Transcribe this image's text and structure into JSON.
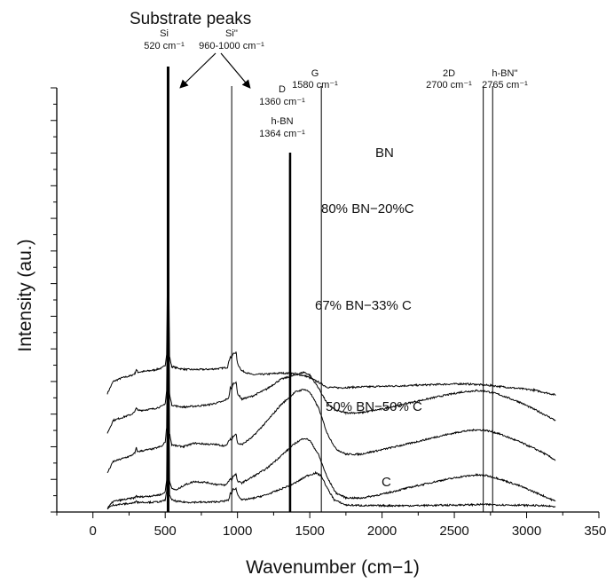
{
  "chart_data": {
    "type": "line",
    "title": "Substrate peaks",
    "xlabel": "Wavenumber (cm−1)",
    "ylabel": "Intensity (au.)",
    "xlim": [
      -250,
      3500
    ],
    "xticks": [
      0,
      500,
      1000,
      1500,
      2000,
      2500,
      3000,
      3500
    ],
    "ytick_count": 27,
    "offset_spectra": true,
    "legend": "none",
    "reference_lines": [
      {
        "id": "si",
        "x": 520,
        "label": "Si",
        "sublabel": "520 cm⁻¹",
        "bold": true
      },
      {
        "id": "si2",
        "x": 960,
        "label": "Si''",
        "sublabel": "960-1000 cm⁻¹",
        "bold": false
      },
      {
        "id": "d",
        "x": 1360,
        "label": "D",
        "sublabel": "1360 cm⁻¹",
        "bold": false
      },
      {
        "id": "hbn",
        "x": 1364,
        "label": "h-BN",
        "sublabel": "1364 cm⁻¹",
        "bold": true
      },
      {
        "id": "g",
        "x": 1580,
        "label": "G",
        "sublabel": "1580 cm⁻¹",
        "bold": false
      },
      {
        "id": "2d",
        "x": 2700,
        "label": "2D",
        "sublabel": "2700 cm⁻¹",
        "bold": false
      },
      {
        "id": "hbn2",
        "x": 2765,
        "label": "h-BN''",
        "sublabel": "2765 cm⁻¹",
        "bold": false
      }
    ],
    "series": [
      {
        "name": "BN",
        "offset": 4.05,
        "points": [
          [
            100,
            0.0
          ],
          [
            140,
            0.42
          ],
          [
            200,
            0.55
          ],
          [
            260,
            0.62
          ],
          [
            290,
            0.7
          ],
          [
            300,
            0.85
          ],
          [
            310,
            0.75
          ],
          [
            360,
            0.78
          ],
          [
            420,
            0.82
          ],
          [
            480,
            0.9
          ],
          [
            500,
            1.0
          ],
          [
            510,
            1.4
          ],
          [
            520,
            6.5
          ],
          [
            530,
            1.3
          ],
          [
            545,
            0.95
          ],
          [
            580,
            0.9
          ],
          [
            630,
            0.85
          ],
          [
            700,
            0.84
          ],
          [
            800,
            0.85
          ],
          [
            880,
            0.88
          ],
          [
            930,
            0.92
          ],
          [
            950,
            1.3
          ],
          [
            960,
            1.25
          ],
          [
            970,
            1.4
          ],
          [
            990,
            1.45
          ],
          [
            1000,
            1.05
          ],
          [
            1030,
            0.8
          ],
          [
            1100,
            0.66
          ],
          [
            1200,
            0.68
          ],
          [
            1300,
            0.72
          ],
          [
            1400,
            0.7
          ],
          [
            1480,
            0.6
          ],
          [
            1560,
            0.4
          ],
          [
            1620,
            0.22
          ],
          [
            1700,
            0.2
          ],
          [
            1800,
            0.22
          ],
          [
            2000,
            0.25
          ],
          [
            2200,
            0.28
          ],
          [
            2400,
            0.32
          ],
          [
            2550,
            0.34
          ],
          [
            2650,
            0.32
          ],
          [
            2750,
            0.28
          ],
          [
            2900,
            0.2
          ],
          [
            3050,
            0.12
          ],
          [
            3200,
            -0.05
          ]
        ]
      },
      {
        "name": "80% BN−20%C",
        "offset": 2.65,
        "points": [
          [
            100,
            0.0
          ],
          [
            140,
            0.45
          ],
          [
            200,
            0.55
          ],
          [
            260,
            0.65
          ],
          [
            290,
            0.75
          ],
          [
            300,
            0.92
          ],
          [
            310,
            0.8
          ],
          [
            360,
            0.82
          ],
          [
            420,
            0.86
          ],
          [
            480,
            0.95
          ],
          [
            500,
            1.05
          ],
          [
            510,
            1.5
          ],
          [
            520,
            7.8
          ],
          [
            530,
            1.4
          ],
          [
            545,
            1.0
          ],
          [
            580,
            0.95
          ],
          [
            630,
            0.92
          ],
          [
            700,
            0.95
          ],
          [
            800,
            1.0
          ],
          [
            900,
            1.12
          ],
          [
            940,
            1.25
          ],
          [
            950,
            1.6
          ],
          [
            960,
            1.55
          ],
          [
            970,
            1.75
          ],
          [
            990,
            1.8
          ],
          [
            1000,
            1.4
          ],
          [
            1030,
            1.2
          ],
          [
            1100,
            1.3
          ],
          [
            1200,
            1.55
          ],
          [
            1300,
            1.9
          ],
          [
            1400,
            2.05
          ],
          [
            1460,
            2.15
          ],
          [
            1500,
            2.05
          ],
          [
            1560,
            1.6
          ],
          [
            1620,
            1.05
          ],
          [
            1680,
            0.8
          ],
          [
            1750,
            0.72
          ],
          [
            1850,
            0.72
          ],
          [
            2000,
            0.85
          ],
          [
            2200,
            1.08
          ],
          [
            2400,
            1.3
          ],
          [
            2550,
            1.45
          ],
          [
            2650,
            1.5
          ],
          [
            2720,
            1.48
          ],
          [
            2800,
            1.38
          ],
          [
            2950,
            1.1
          ],
          [
            3100,
            0.72
          ],
          [
            3200,
            0.45
          ]
        ]
      },
      {
        "name": "67% BN−33% C",
        "offset": 1.25,
        "points": [
          [
            100,
            0.0
          ],
          [
            140,
            0.4
          ],
          [
            200,
            0.5
          ],
          [
            260,
            0.6
          ],
          [
            290,
            0.7
          ],
          [
            300,
            0.88
          ],
          [
            310,
            0.75
          ],
          [
            360,
            0.8
          ],
          [
            420,
            0.85
          ],
          [
            480,
            0.95
          ],
          [
            500,
            1.1
          ],
          [
            510,
            1.6
          ],
          [
            520,
            8.6
          ],
          [
            530,
            1.4
          ],
          [
            545,
            1.0
          ],
          [
            580,
            0.95
          ],
          [
            630,
            0.93
          ],
          [
            700,
            1.05
          ],
          [
            780,
            1.02
          ],
          [
            850,
            1.0
          ],
          [
            920,
            0.95
          ],
          [
            950,
            1.2
          ],
          [
            960,
            1.15
          ],
          [
            970,
            1.3
          ],
          [
            990,
            1.38
          ],
          [
            1000,
            1.05
          ],
          [
            1030,
            1.0
          ],
          [
            1100,
            1.25
          ],
          [
            1200,
            1.8
          ],
          [
            1300,
            2.4
          ],
          [
            1400,
            2.85
          ],
          [
            1460,
            2.95
          ],
          [
            1500,
            2.85
          ],
          [
            1560,
            2.3
          ],
          [
            1620,
            1.4
          ],
          [
            1680,
            0.85
          ],
          [
            1750,
            0.66
          ],
          [
            1850,
            0.66
          ],
          [
            2000,
            0.82
          ],
          [
            2200,
            1.05
          ],
          [
            2400,
            1.3
          ],
          [
            2550,
            1.46
          ],
          [
            2650,
            1.52
          ],
          [
            2720,
            1.5
          ],
          [
            2800,
            1.4
          ],
          [
            2950,
            1.1
          ],
          [
            3100,
            0.75
          ],
          [
            3200,
            0.45
          ]
        ]
      },
      {
        "name": "50% BN−50% C",
        "offset": 0.0,
        "points": [
          [
            100,
            0.0
          ],
          [
            140,
            0.25
          ],
          [
            200,
            0.3
          ],
          [
            260,
            0.35
          ],
          [
            290,
            0.38
          ],
          [
            300,
            0.45
          ],
          [
            310,
            0.4
          ],
          [
            360,
            0.42
          ],
          [
            420,
            0.45
          ],
          [
            480,
            0.5
          ],
          [
            500,
            0.6
          ],
          [
            510,
            1.0
          ],
          [
            520,
            8.2
          ],
          [
            530,
            1.0
          ],
          [
            545,
            0.7
          ],
          [
            580,
            0.65
          ],
          [
            630,
            0.82
          ],
          [
            700,
            0.95
          ],
          [
            780,
            0.92
          ],
          [
            850,
            0.85
          ],
          [
            920,
            0.82
          ],
          [
            950,
            1.05
          ],
          [
            960,
            1.0
          ],
          [
            970,
            1.15
          ],
          [
            990,
            1.2
          ],
          [
            1000,
            0.95
          ],
          [
            1030,
            0.9
          ],
          [
            1100,
            1.1
          ],
          [
            1200,
            1.4
          ],
          [
            1300,
            1.85
          ],
          [
            1400,
            2.3
          ],
          [
            1460,
            2.48
          ],
          [
            1500,
            2.4
          ],
          [
            1560,
            1.9
          ],
          [
            1620,
            1.1
          ],
          [
            1680,
            0.55
          ],
          [
            1750,
            0.38
          ],
          [
            1850,
            0.36
          ],
          [
            2000,
            0.5
          ],
          [
            2200,
            0.75
          ],
          [
            2400,
            0.98
          ],
          [
            2550,
            1.12
          ],
          [
            2650,
            1.18
          ],
          [
            2720,
            1.16
          ],
          [
            2800,
            1.06
          ],
          [
            2950,
            0.8
          ],
          [
            3100,
            0.48
          ],
          [
            3200,
            0.25
          ]
        ]
      },
      {
        "name": "C",
        "offset": 0.0,
        "points": [
          [
            100,
            0.0
          ],
          [
            140,
            0.12
          ],
          [
            200,
            0.15
          ],
          [
            260,
            0.18
          ],
          [
            290,
            0.2
          ],
          [
            300,
            0.3
          ],
          [
            310,
            0.22
          ],
          [
            360,
            0.22
          ],
          [
            420,
            0.22
          ],
          [
            480,
            0.25
          ],
          [
            500,
            0.3
          ],
          [
            510,
            0.6
          ],
          [
            520,
            5.2
          ],
          [
            530,
            0.5
          ],
          [
            545,
            0.3
          ],
          [
            580,
            0.25
          ],
          [
            630,
            0.22
          ],
          [
            700,
            0.22
          ],
          [
            800,
            0.22
          ],
          [
            900,
            0.25
          ],
          [
            940,
            0.3
          ],
          [
            950,
            0.55
          ],
          [
            960,
            0.52
          ],
          [
            970,
            0.68
          ],
          [
            990,
            0.7
          ],
          [
            1000,
            0.5
          ],
          [
            1030,
            0.3
          ],
          [
            1100,
            0.35
          ],
          [
            1200,
            0.48
          ],
          [
            1300,
            0.68
          ],
          [
            1400,
            0.9
          ],
          [
            1480,
            1.15
          ],
          [
            1540,
            1.25
          ],
          [
            1580,
            1.15
          ],
          [
            1620,
            0.72
          ],
          [
            1670,
            0.3
          ],
          [
            1750,
            0.12
          ],
          [
            1900,
            0.1
          ],
          [
            2200,
            0.1
          ],
          [
            2500,
            0.12
          ],
          [
            2700,
            0.14
          ],
          [
            2900,
            0.12
          ],
          [
            3100,
            0.1
          ],
          [
            3200,
            0.06
          ]
        ]
      }
    ]
  }
}
